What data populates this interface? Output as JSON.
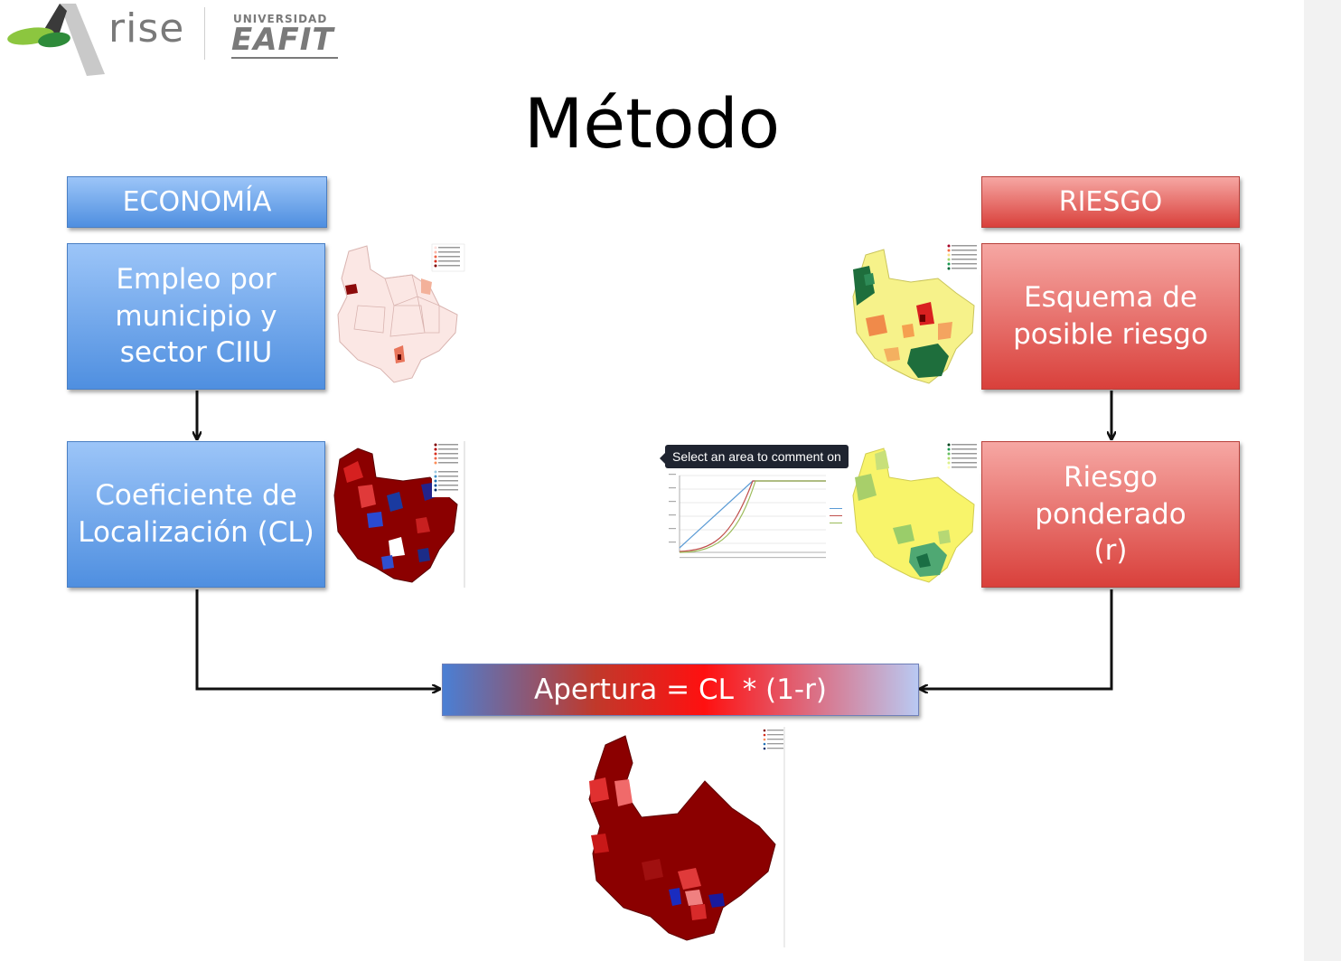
{
  "logo": {
    "brand": "rise",
    "university_top": "UNIVERSIDAD",
    "university_name": "EAFIT"
  },
  "title": "Método",
  "economia": {
    "header": "ECONOMÍA",
    "step1": "Empleo por municipio y sector CIIU",
    "step2": "Coeficiente de Localización (CL)"
  },
  "riesgo": {
    "header": "RIESGO",
    "step1": "Esquema de posible riesgo",
    "step2": "Riesgo ponderado (r)"
  },
  "formula": "Apertura = CL * (1-r)",
  "tooltip": "Select an area to comment on",
  "colors": {
    "blue": "#4f8fe0",
    "red": "#d9403b",
    "dark_red": "#8b0000",
    "green": "#1e7a44",
    "yellow": "#f5f07a"
  }
}
